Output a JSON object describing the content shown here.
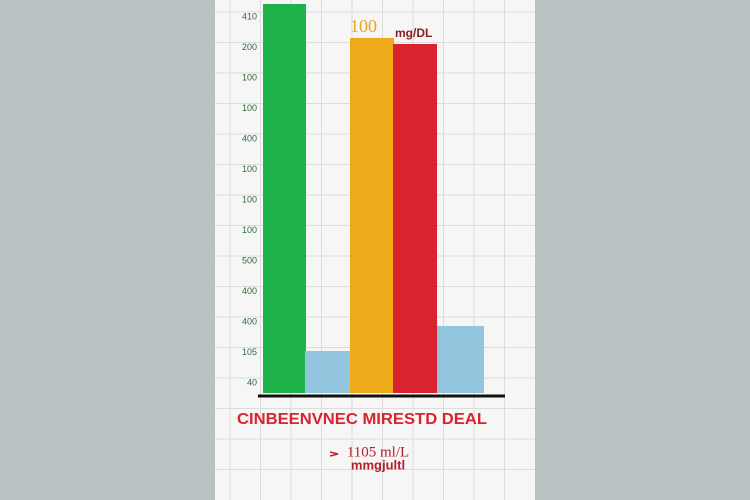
{
  "axis_labels": [
    "410",
    "200",
    "100",
    "100",
    "400",
    "100",
    "100",
    "100",
    "500",
    "400",
    "400",
    "105",
    "40"
  ],
  "bar_label": "100",
  "unit_label": "mg/DL",
  "title": "CINBEENVNEC MIRESTD DEAL",
  "footnote": {
    "line1": "1105 ml/L",
    "line2": "mmgjultl"
  }
}
